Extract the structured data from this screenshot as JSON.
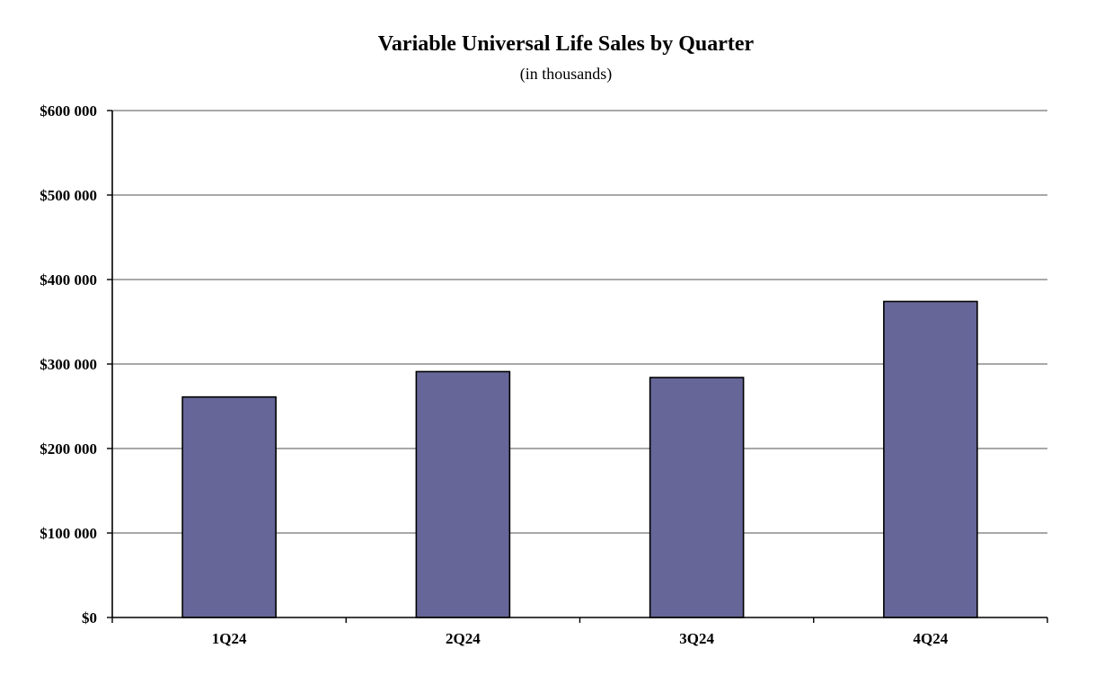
{
  "chart_data": {
    "type": "bar",
    "title": "Variable Universal Life Sales by Quarter",
    "subtitle": "(in thousands)",
    "xlabel": "",
    "ylabel": "",
    "categories": [
      "1Q24",
      "2Q24",
      "3Q24",
      "4Q24"
    ],
    "values": [
      261000,
      291000,
      284000,
      374000
    ],
    "ylim": [
      0,
      600000
    ],
    "y_ticks": [
      0,
      100000,
      200000,
      300000,
      400000,
      500000,
      600000
    ],
    "y_tick_labels": [
      "$0",
      "$100 000",
      "$200 000",
      "$300 000",
      "$400 000",
      "$500 000",
      "$600 000"
    ],
    "grid": true,
    "legend": "none",
    "colors": {
      "bar": "#666699",
      "grid": "#8c8c8c",
      "axis": "#000000"
    }
  }
}
